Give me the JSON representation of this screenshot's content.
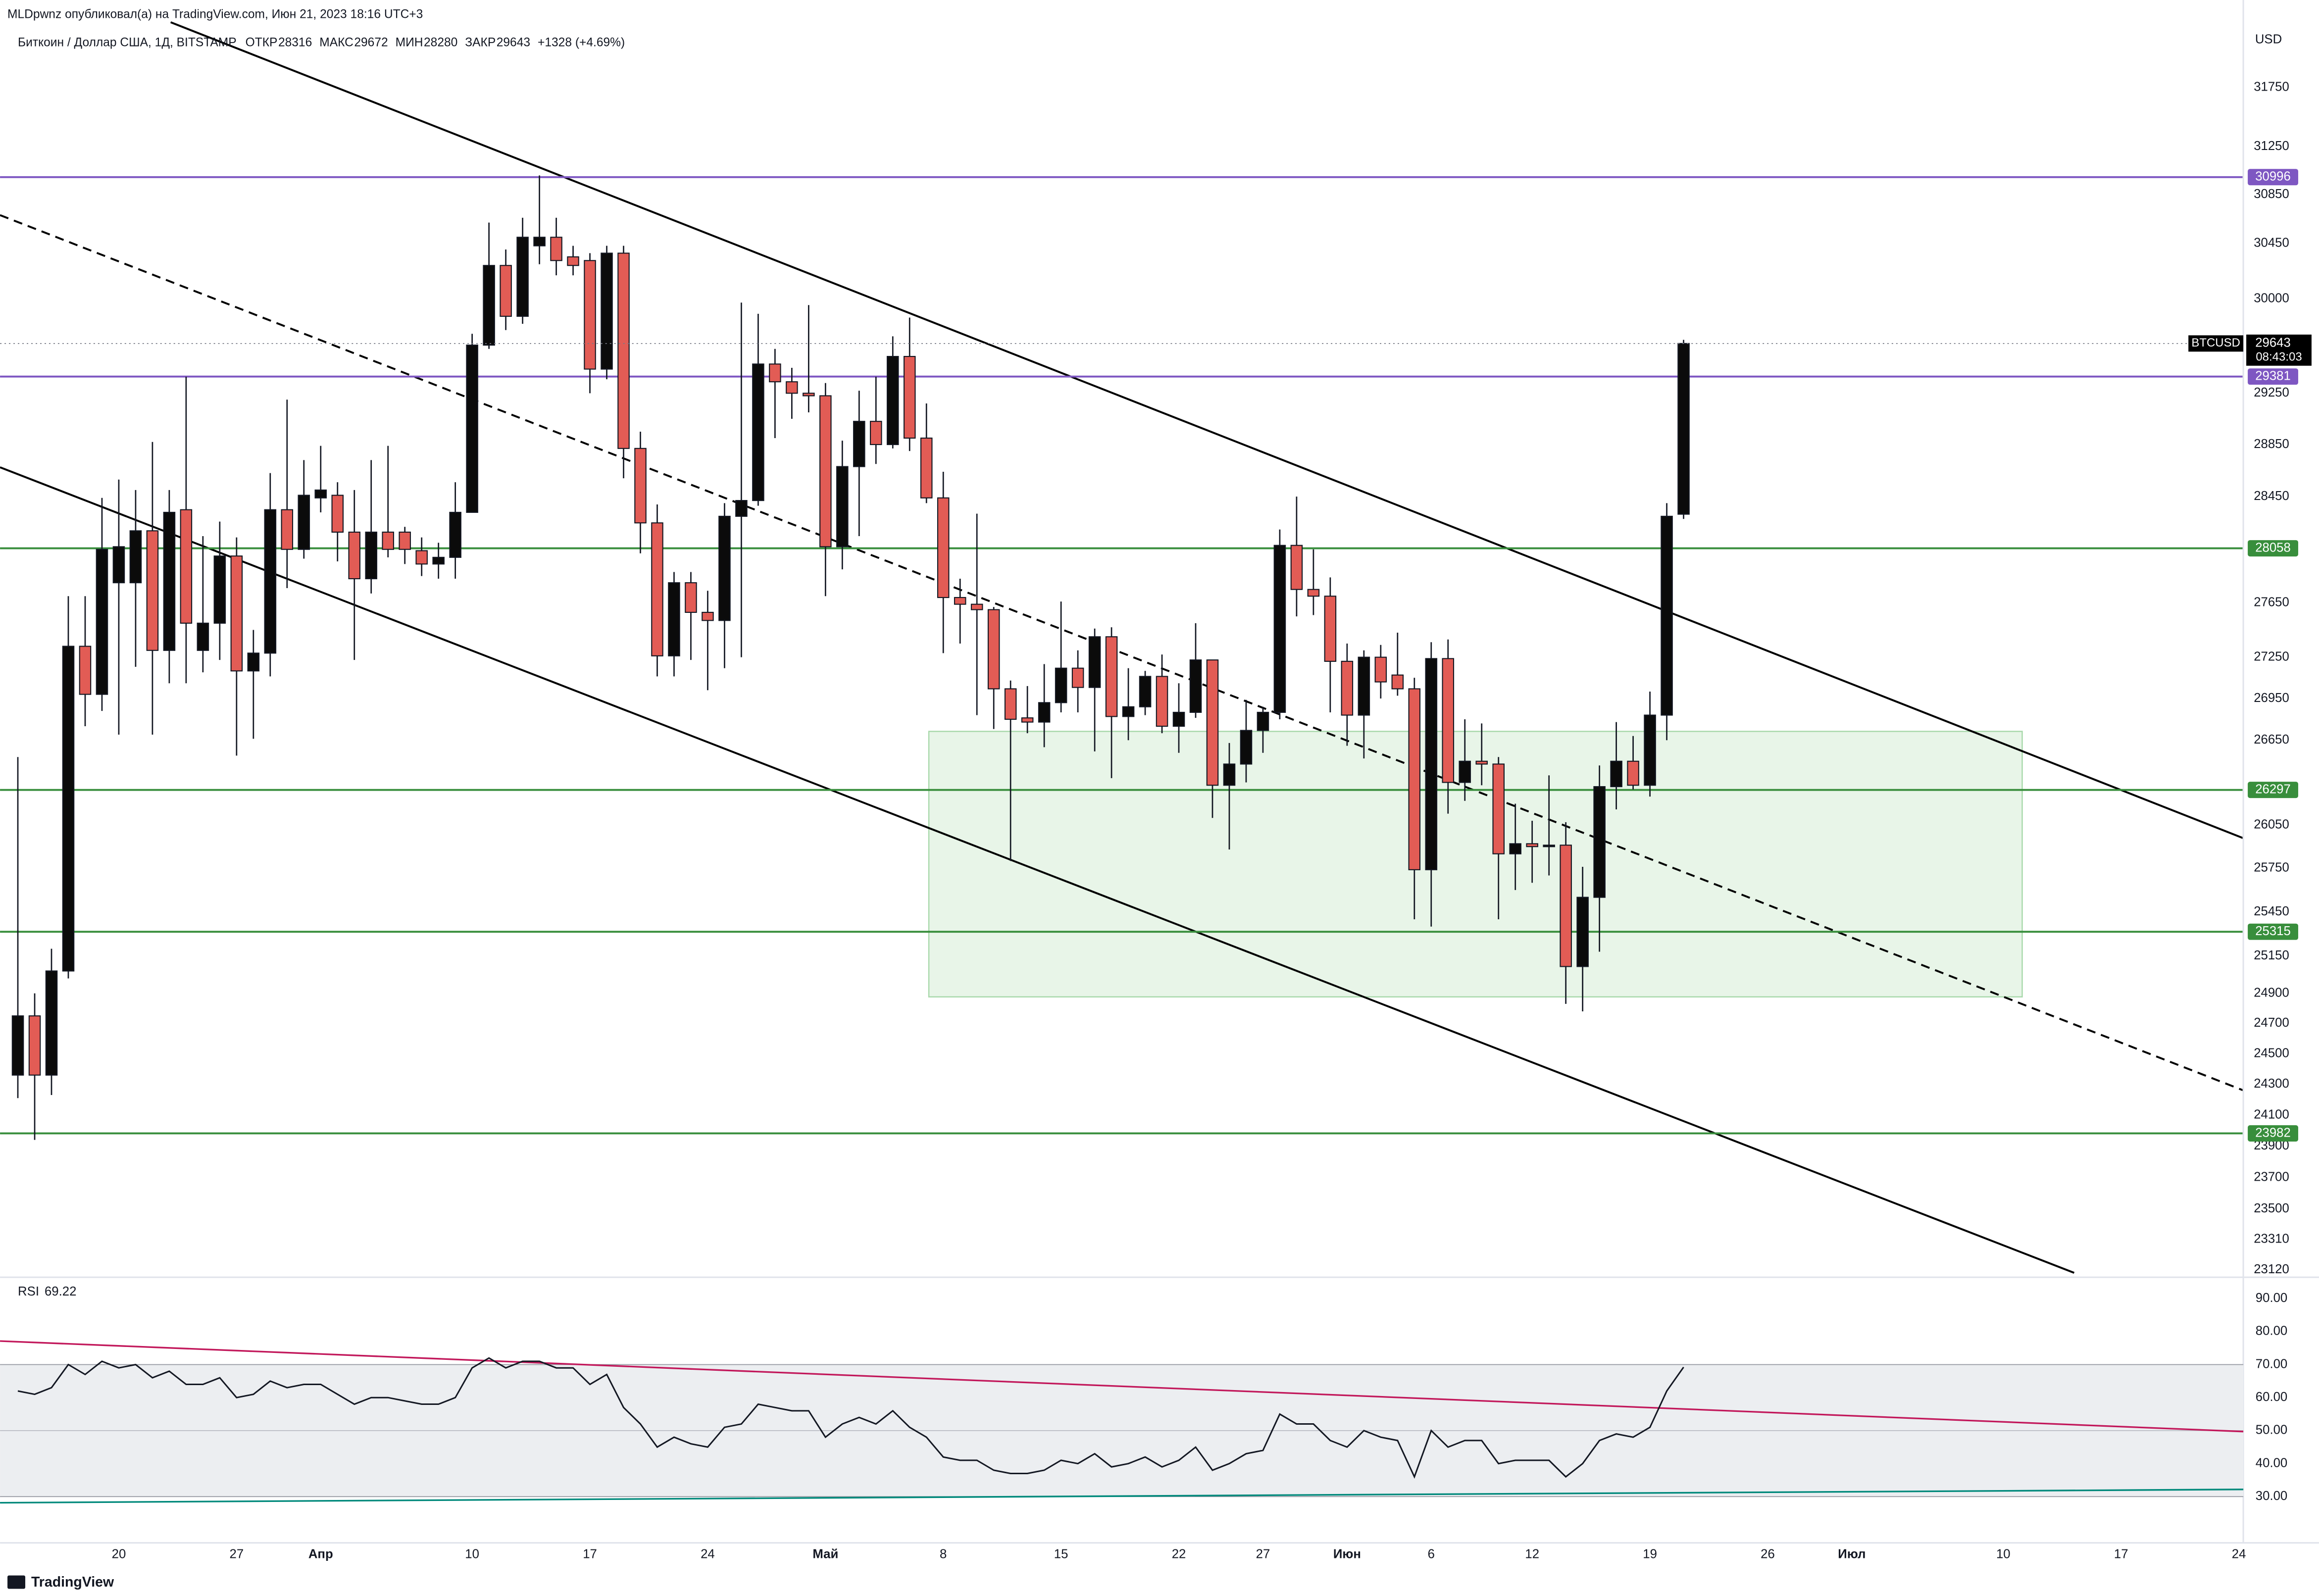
{
  "published": "MLDpwnz опубликовал(а) на TradingView.com, Июн 21, 2023 18:16 UTC+3",
  "brand": "TradingView",
  "chart_data": [
    {
      "type": "candlestick",
      "title": "Биткоин / Доллар США, 1Д, BITSTAMP",
      "ohlc_labels": [
        "ОТКР",
        "МАКС",
        "МИН",
        "ЗАКР"
      ],
      "change_label": "+1328 (+4.69%)",
      "currency": "USD",
      "symbol": "BTCUSD",
      "countdown": "08:43:03",
      "log_scale": true,
      "grid": false,
      "up_color": "#0b0b0b",
      "down_color": "#e25c55",
      "ylim": [
        23083,
        32311
      ],
      "yticks": [
        31750,
        31250,
        30850,
        30450,
        30000,
        29250,
        28850,
        28450,
        27650,
        27250,
        26950,
        26650,
        26050,
        25750,
        25450,
        25150,
        24900,
        24700,
        24500,
        24300,
        24100,
        23900,
        23700,
        23500,
        23310,
        23120
      ],
      "levels": [
        {
          "value": 30996,
          "color": "#7e57c2"
        },
        {
          "value": 29381,
          "color": "#7e57c2"
        },
        {
          "value": 28058,
          "color": "#388e3c"
        },
        {
          "value": 26297,
          "color": "#388e3c"
        },
        {
          "value": 25315,
          "color": "#388e3c"
        },
        {
          "value": 23982,
          "color": "#388e3c"
        }
      ],
      "categories": [
        null,
        null,
        null,
        null,
        null,
        null,
        "20",
        null,
        null,
        null,
        null,
        null,
        null,
        "27",
        null,
        null,
        null,
        null,
        "Апр",
        null,
        null,
        null,
        null,
        null,
        null,
        null,
        null,
        "10",
        null,
        null,
        null,
        null,
        null,
        null,
        "17",
        null,
        null,
        null,
        null,
        null,
        null,
        "24",
        null,
        null,
        null,
        null,
        null,
        null,
        "Май",
        null,
        null,
        null,
        null,
        null,
        null,
        "8",
        null,
        null,
        null,
        null,
        null,
        null,
        "15",
        null,
        null,
        null,
        null,
        null,
        null,
        "22",
        null,
        null,
        null,
        null,
        "27",
        null,
        null,
        null,
        null,
        "Июн",
        null,
        null,
        null,
        null,
        "6",
        null,
        null,
        null,
        null,
        null,
        "12",
        null,
        null,
        null,
        null,
        null,
        null,
        "19",
        null,
        null,
        null,
        null,
        null,
        null,
        "26",
        null,
        null,
        null,
        null,
        "Июл",
        null,
        null,
        null,
        null,
        null,
        null,
        null,
        null,
        "10",
        null,
        null,
        null,
        null,
        null,
        null,
        "17",
        null,
        null,
        null,
        null,
        null,
        null,
        "24"
      ],
      "open": [
        24360,
        24750,
        24360,
        25050,
        27330,
        26980,
        27800,
        27800,
        28190,
        27300,
        28350,
        27300,
        27500,
        28000,
        27150,
        27280,
        28350,
        28050,
        28440,
        28460,
        28180,
        27830,
        28180,
        28180,
        28040,
        27940,
        27990,
        28330,
        29630,
        30270,
        29860,
        30430,
        30500,
        30340,
        30310,
        29440,
        30370,
        28820,
        28250,
        27260,
        27800,
        27580,
        27520,
        28300,
        28420,
        29480,
        29340,
        29250,
        29230,
        28070,
        28680,
        29030,
        28850,
        29540,
        28900,
        28440,
        27690,
        27640,
        27600,
        27020,
        26810,
        26780,
        26920,
        27170,
        27030,
        27400,
        26820,
        26890,
        27110,
        26750,
        26850,
        27230,
        26330,
        26480,
        26720,
        26850,
        28080,
        27750,
        27700,
        27220,
        26830,
        27250,
        27120,
        27020,
        25740,
        27240,
        26350,
        26500,
        26480,
        25850,
        25920,
        25900,
        25910,
        25080,
        25550,
        26320,
        26500,
        26330,
        26830,
        28316,
        null,
        null,
        null,
        null,
        null,
        null,
        null,
        null,
        null,
        null,
        null,
        null,
        null,
        null,
        null,
        null,
        null,
        null,
        null,
        null,
        null,
        null,
        null,
        null,
        null,
        null,
        null,
        null,
        null,
        null,
        null,
        null,
        null
      ],
      "high": [
        26530,
        24900,
        25200,
        27700,
        27700,
        28440,
        28580,
        28500,
        28870,
        28500,
        29380,
        28150,
        28260,
        28140,
        27450,
        28630,
        29200,
        28730,
        28840,
        28560,
        28500,
        28730,
        28840,
        28220,
        28140,
        28100,
        28560,
        29720,
        30620,
        30400,
        30660,
        31010,
        30660,
        30430,
        30370,
        30430,
        30430,
        28950,
        28390,
        27880,
        27880,
        27740,
        28400,
        29970,
        29880,
        29600,
        29450,
        29950,
        29330,
        28880,
        29270,
        29380,
        29700,
        29850,
        29170,
        28640,
        27830,
        28320,
        27620,
        27080,
        27040,
        27200,
        27660,
        27300,
        27460,
        27470,
        27170,
        27150,
        27270,
        27060,
        27500,
        27230,
        26630,
        26940,
        26890,
        28200,
        28450,
        28050,
        27840,
        27350,
        27300,
        27340,
        27430,
        27100,
        27360,
        27380,
        26800,
        26770,
        26530,
        26200,
        26080,
        26400,
        26070,
        25760,
        26470,
        26780,
        26680,
        27000,
        28400,
        29672,
        null,
        null,
        null,
        null,
        null,
        null,
        null,
        null,
        null,
        null,
        null,
        null,
        null,
        null,
        null,
        null,
        null,
        null,
        null,
        null,
        null,
        null,
        null,
        null,
        null,
        null,
        null,
        null,
        null,
        null,
        null,
        null,
        null
      ],
      "low": [
        24210,
        23940,
        24230,
        25000,
        26750,
        26860,
        26690,
        27180,
        26690,
        27060,
        27060,
        27140,
        27230,
        26540,
        26660,
        27110,
        27760,
        27980,
        28330,
        27960,
        27230,
        27720,
        27990,
        27940,
        27850,
        27830,
        27830,
        28330,
        29600,
        29750,
        29800,
        30280,
        30190,
        30190,
        29250,
        29360,
        28590,
        28020,
        27110,
        27110,
        27230,
        27010,
        27170,
        27250,
        28380,
        28900,
        29050,
        29100,
        27700,
        27900,
        28150,
        28700,
        28820,
        28800,
        28400,
        27280,
        27350,
        26830,
        26730,
        25800,
        26700,
        26600,
        26850,
        26850,
        26570,
        26380,
        26650,
        26830,
        26700,
        26560,
        26810,
        26100,
        25880,
        26350,
        26560,
        26800,
        27550,
        27560,
        26850,
        26610,
        26520,
        26950,
        26970,
        25400,
        25350,
        26130,
        26220,
        26330,
        25400,
        25600,
        25650,
        25700,
        24830,
        24780,
        25180,
        26160,
        26300,
        26250,
        26650,
        28280,
        null,
        null,
        null,
        null,
        null,
        null,
        null,
        null,
        null,
        null,
        null,
        null,
        null,
        null,
        null,
        null,
        null,
        null,
        null,
        null,
        null,
        null,
        null,
        null,
        null,
        null,
        null,
        null,
        null,
        null,
        null,
        null,
        null
      ],
      "close": [
        24750,
        24360,
        25050,
        27330,
        26980,
        28050,
        28070,
        28190,
        27300,
        28330,
        27500,
        27500,
        28000,
        27150,
        27280,
        28350,
        28050,
        28460,
        28500,
        28180,
        27830,
        28180,
        28050,
        28050,
        27940,
        27990,
        28330,
        29630,
        30270,
        29860,
        30500,
        30500,
        30310,
        30270,
        29440,
        30370,
        28820,
        28250,
        27260,
        27800,
        27580,
        27520,
        28300,
        28420,
        29480,
        29340,
        29250,
        29230,
        28070,
        28680,
        29030,
        28850,
        29540,
        28900,
        28440,
        27690,
        27640,
        27600,
        27020,
        26800,
        26780,
        26920,
        27170,
        27030,
        27400,
        26820,
        26890,
        27110,
        26750,
        26850,
        27230,
        26330,
        26480,
        26720,
        26850,
        28080,
        27750,
        27700,
        27220,
        26830,
        27250,
        27070,
        27020,
        25740,
        27240,
        26350,
        26500,
        26480,
        25850,
        25920,
        25900,
        25910,
        25080,
        25550,
        26320,
        26500,
        26330,
        26830,
        28300,
        29643,
        null,
        null,
        null,
        null,
        null,
        null,
        null,
        null,
        null,
        null,
        null,
        null,
        null,
        null,
        null,
        null,
        null,
        null,
        null,
        null,
        null,
        null,
        null,
        null,
        null,
        null,
        null,
        null,
        null,
        null,
        null,
        null,
        null
      ]
    },
    {
      "type": "line",
      "title": "RSI",
      "color": "#131722",
      "ylim": [
        16,
        96
      ],
      "yticks": [
        {
          "value": 90,
          "label": "90.00"
        },
        {
          "value": 80,
          "label": "80.00"
        },
        {
          "value": 70,
          "label": "70.00"
        },
        {
          "value": 60,
          "label": "60.00"
        },
        {
          "value": 50,
          "label": "50.00"
        },
        {
          "value": 40,
          "label": "40.00"
        },
        {
          "value": 30,
          "label": "30.00"
        }
      ],
      "band": [
        30,
        70
      ],
      "values": [
        62,
        61,
        63,
        70,
        67,
        71,
        69,
        70,
        66,
        68,
        64,
        64,
        66,
        60,
        61,
        65,
        63,
        64,
        64,
        61,
        58,
        60,
        60,
        59,
        58,
        58,
        60,
        69,
        72,
        69,
        71,
        71,
        69,
        69,
        64,
        67,
        57,
        52,
        45,
        48,
        46,
        45,
        51,
        52,
        58,
        57,
        56,
        56,
        48,
        52,
        54,
        52,
        56,
        51,
        48,
        42,
        41,
        41,
        38,
        37,
        37,
        38,
        41,
        40,
        43,
        39,
        40,
        42,
        39,
        41,
        45,
        38,
        40,
        43,
        44,
        55,
        52,
        52,
        47,
        45,
        50,
        48,
        47,
        36,
        50,
        45,
        47,
        47,
        40,
        41,
        41,
        41,
        36,
        40,
        47,
        49,
        48,
        51,
        62,
        69.22,
        null,
        null,
        null,
        null,
        null,
        null,
        null,
        null,
        null,
        null,
        null,
        null,
        null,
        null,
        null,
        null,
        null,
        null,
        null,
        null,
        null,
        null,
        null,
        null,
        null,
        null,
        null,
        null,
        null,
        null,
        null,
        null,
        null
      ]
    }
  ]
}
